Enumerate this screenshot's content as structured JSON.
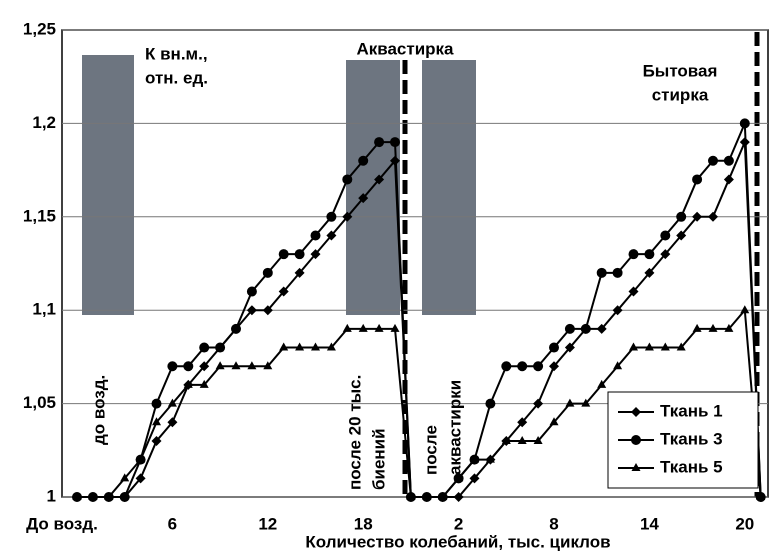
{
  "chart_data": {
    "type": "line",
    "y_label": [
      "К вн.м.,",
      "отн. ед."
    ],
    "x_label": "Количество колебаний, тыс. циклов",
    "annotations": {
      "aqua": [
        "Аквастирка"
      ],
      "home": [
        "Бытовая",
        "стирка"
      ],
      "before": [
        "до возд."
      ],
      "after20": [
        "после 20 тыс.",
        "биений"
      ],
      "afterAqua": [
        "после",
        "аквастирки"
      ]
    },
    "categories": [
      "До возд.",
      null,
      null,
      null,
      null,
      null,
      "6",
      null,
      null,
      null,
      null,
      null,
      "12",
      null,
      null,
      null,
      null,
      null,
      "18",
      null,
      null,
      null,
      null,
      null,
      "2",
      null,
      null,
      null,
      null,
      null,
      "8",
      null,
      null,
      null,
      null,
      null,
      "14",
      null,
      null,
      null,
      null,
      null,
      "20",
      null
    ],
    "ylim": [
      1,
      1.25
    ],
    "yticks": [
      1,
      {
        "value": 1.05,
        "label": "1,05"
      },
      {
        "value": 1.1,
        "label": "1,1"
      },
      {
        "value": 1.15,
        "label": "1,15"
      },
      {
        "value": 1.2,
        "label": "1,2"
      },
      {
        "value": 1.25,
        "label": "1,25"
      }
    ],
    "grid": true,
    "legend": "lower-right",
    "series": [
      {
        "name": "Ткань 1",
        "color": "#000000",
        "marker": "diamond",
        "values": [
          1,
          1,
          1,
          1,
          1.01,
          1.03,
          1.04,
          1.06,
          1.07,
          1.08,
          1.09,
          1.1,
          1.1,
          1.11,
          1.12,
          1.13,
          1.14,
          1.15,
          1.16,
          1.17,
          1.18,
          1,
          1,
          1,
          1,
          1.01,
          1.02,
          1.03,
          1.04,
          1.05,
          1.07,
          1.08,
          1.09,
          1.09,
          1.1,
          1.11,
          1.12,
          1.13,
          1.14,
          1.15,
          1.15,
          1.17,
          1.19,
          1
        ]
      },
      {
        "name": "Ткань 3",
        "color": "#000000",
        "marker": "circle",
        "values": [
          1,
          1,
          1,
          1,
          1.02,
          1.05,
          1.07,
          1.07,
          1.08,
          1.08,
          1.09,
          1.11,
          1.12,
          1.13,
          1.13,
          1.14,
          1.15,
          1.17,
          1.18,
          1.19,
          1.19,
          1,
          1,
          1,
          1.01,
          1.02,
          1.05,
          1.07,
          1.07,
          1.07,
          1.08,
          1.09,
          1.09,
          1.12,
          1.12,
          1.13,
          1.13,
          1.14,
          1.15,
          1.17,
          1.18,
          1.18,
          1.2,
          1
        ]
      },
      {
        "name": "Ткань 5",
        "color": "#000000",
        "marker": "triangle",
        "values": [
          1,
          1,
          1,
          1.01,
          1.02,
          1.04,
          1.05,
          1.06,
          1.06,
          1.07,
          1.07,
          1.07,
          1.07,
          1.08,
          1.08,
          1.08,
          1.08,
          1.09,
          1.09,
          1.09,
          1.09,
          1,
          1,
          1,
          1.01,
          1.02,
          1.02,
          1.03,
          1.03,
          1.03,
          1.04,
          1.05,
          1.05,
          1.06,
          1.07,
          1.08,
          1.08,
          1.08,
          1.08,
          1.09,
          1.09,
          1.09,
          1.1,
          1
        ]
      }
    ]
  }
}
